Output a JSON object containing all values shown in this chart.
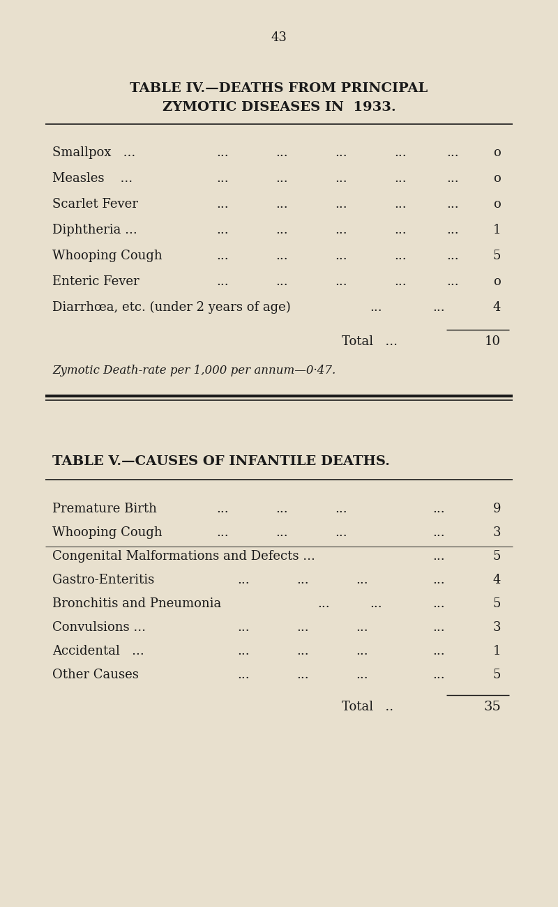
{
  "bg_color": "#e8e0ce",
  "page_number": "43",
  "text_color": "#1a1a1a",
  "line_color": "#1a1a1a",
  "table4": {
    "title_line1": "TABLE IV.—DEATHS FROM PRINCIPAL",
    "title_line2": "ZYMOTIC DISEASES IN  1933.",
    "row_labels": [
      "Smallpox   ...",
      "Measles    ...",
      "Scarlet Fever",
      "Diphtheria ...",
      "Whooping Cough",
      "Enteric Fever",
      "Diarrhœa, etc. (under 2 years of age)"
    ],
    "row_dots": [
      "...       ...       ...       ...",
      "...       ...       ...       ...",
      "...       ...       ...       ...",
      "...       ...       ...,       ...",
      "...       ...       ...       ...",
      "...       ...       ...       ...",
      "...       ..."
    ],
    "row_values": [
      "o",
      "o",
      "o",
      "1",
      "5",
      "o",
      "4"
    ],
    "total_label": "Total   ...",
    "total_value": "10",
    "footnote": "Zymotic Death-rate per 1,000 per annum—0·47."
  },
  "table5": {
    "title": "TABLE V.—CAUSES OF INFANTILE DEATHS.",
    "row_labels": [
      "Premature Birth",
      "Whooping Cough",
      "Congenital Malformations and Defects ...",
      "Gastro-Enteritis",
      "Bronchitis and Pneumonia",
      "Convulsions ...",
      "Accidental   ...",
      "Other Causes"
    ],
    "row_dots_col1": [
      "...",
      "...",
      "",
      "...",
      "...",
      "...",
      "...",
      "..."
    ],
    "row_dots_col2": [
      "...",
      "...",
      "...",
      "...",
      "...",
      "...",
      "...",
      "..."
    ],
    "row_dots_col3": [
      "...",
      "...",
      "",
      "...",
      "...",
      "...",
      "...",
      "..."
    ],
    "row_dots_col4": [
      "...",
      "...",
      "...",
      "...",
      "...",
      "...",
      "...",
      "..."
    ],
    "row_values": [
      "9",
      "3",
      "5",
      "4",
      "5",
      "3",
      "1",
      "5"
    ],
    "total_label": "Total   ..",
    "total_value": "35"
  }
}
